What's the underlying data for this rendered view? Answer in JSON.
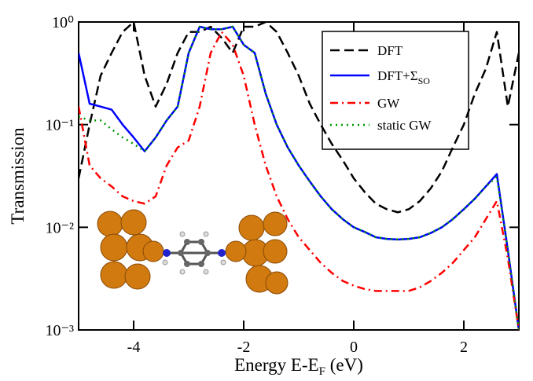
{
  "chart_data": {
    "type": "line",
    "y_label": "Transmission",
    "x_label": "Energy E-E",
    "x_label_subscript": "F",
    "x_label_suffix": " (eV)",
    "log_y": true,
    "xlim": [
      -5,
      3
    ],
    "xticks": [
      -4,
      -2,
      0,
      2
    ],
    "ylim": [
      0.001,
      1
    ],
    "yticks": [
      {
        "value": 0.001,
        "label": "10⁻³"
      },
      {
        "value": 0.01,
        "label": "10⁻²"
      },
      {
        "value": 0.1,
        "label": "10⁻¹"
      },
      {
        "value": 1,
        "label": "10⁰"
      }
    ],
    "legend": "top-right",
    "x": [
      -5.0,
      -4.8,
      -4.6,
      -4.4,
      -4.2,
      -4.0,
      -3.8,
      -3.6,
      -3.4,
      -3.2,
      -3.0,
      -2.8,
      -2.6,
      -2.4,
      -2.2,
      -2.0,
      -1.8,
      -1.6,
      -1.4,
      -1.2,
      -1.0,
      -0.8,
      -0.6,
      -0.4,
      -0.2,
      0.0,
      0.2,
      0.4,
      0.6,
      0.8,
      1.0,
      1.2,
      1.4,
      1.6,
      1.8,
      2.0,
      2.2,
      2.4,
      2.6,
      2.8,
      3.0
    ],
    "series": [
      {
        "name": "DFT",
        "color": "#000000",
        "style": "dashed",
        "values": [
          0.03,
          0.1,
          0.3,
          0.5,
          0.8,
          1.0,
          0.3,
          0.15,
          0.25,
          0.5,
          0.8,
          0.8,
          0.9,
          0.7,
          0.5,
          0.9,
          0.9,
          1.0,
          0.8,
          0.5,
          0.3,
          0.16,
          0.1,
          0.065,
          0.045,
          0.03,
          0.022,
          0.017,
          0.015,
          0.014,
          0.015,
          0.018,
          0.024,
          0.035,
          0.06,
          0.1,
          0.2,
          0.35,
          0.8,
          0.15,
          0.5
        ]
      },
      {
        "name": "DFT+Σ",
        "name_subscript": "SO",
        "color": "#0000ff",
        "style": "solid",
        "values": [
          0.5,
          0.16,
          0.15,
          0.14,
          0.1,
          0.075,
          0.055,
          0.075,
          0.11,
          0.15,
          0.5,
          0.9,
          0.85,
          0.85,
          0.9,
          0.6,
          0.5,
          0.2,
          0.1,
          0.06,
          0.04,
          0.028,
          0.02,
          0.015,
          0.012,
          0.01,
          0.009,
          0.008,
          0.0077,
          0.0076,
          0.0077,
          0.008,
          0.0088,
          0.01,
          0.012,
          0.015,
          0.019,
          0.025,
          0.033,
          0.006,
          0.001
        ]
      },
      {
        "name": "GW",
        "color": "#ff0000",
        "style": "dashdot",
        "values": [
          0.15,
          0.04,
          0.03,
          0.025,
          0.02,
          0.018,
          0.017,
          0.02,
          0.04,
          0.06,
          0.07,
          0.15,
          0.5,
          0.8,
          0.6,
          0.3,
          0.1,
          0.04,
          0.02,
          0.012,
          0.008,
          0.006,
          0.0045,
          0.0036,
          0.003,
          0.0027,
          0.0025,
          0.0024,
          0.0024,
          0.0024,
          0.0024,
          0.0026,
          0.003,
          0.0036,
          0.0045,
          0.006,
          0.008,
          0.012,
          0.018,
          0.005,
          0.001
        ]
      },
      {
        "name": "static GW",
        "color": "#009900",
        "style": "dotted",
        "values": [
          0.12,
          0.11,
          0.11,
          0.09,
          0.075,
          0.065,
          0.055,
          0.075,
          0.11,
          0.15,
          0.5,
          0.9,
          0.85,
          0.85,
          0.9,
          0.6,
          0.5,
          0.2,
          0.1,
          0.06,
          0.04,
          0.028,
          0.02,
          0.015,
          0.012,
          0.01,
          0.009,
          0.008,
          0.0077,
          0.0076,
          0.0077,
          0.008,
          0.0088,
          0.01,
          0.012,
          0.015,
          0.019,
          0.025,
          0.031,
          0.006,
          0.001
        ]
      }
    ]
  }
}
